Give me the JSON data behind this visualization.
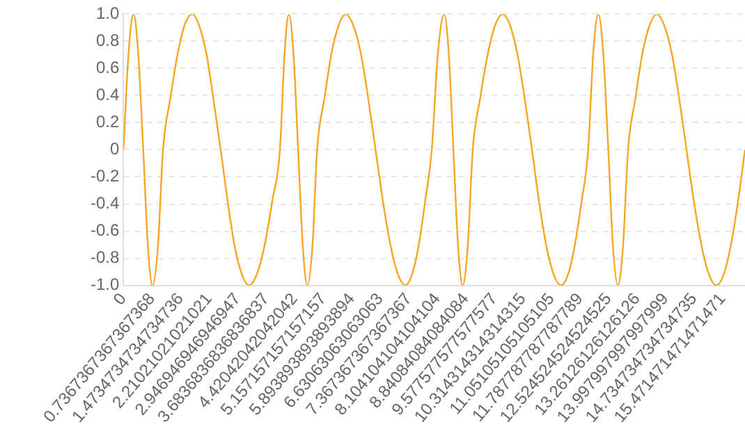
{
  "chart_data": {
    "type": "line",
    "x": [
      0,
      0.13,
      0.26,
      0.38,
      0.51,
      0.63,
      0.75,
      0.89,
      1.02,
      1.21,
      1.4,
      1.58,
      1.77,
      1.95,
      2.14,
      2.32,
      2.51,
      2.69,
      2.87,
      3.06,
      3.24,
      3.44,
      3.64,
      3.84,
      4.04,
      4.16,
      4.27,
      4.39,
      4.51,
      4.63,
      4.75,
      4.88,
      5.0,
      5.19,
      5.37,
      5.56,
      5.74,
      5.93,
      6.13,
      6.32,
      6.51,
      6.7,
      6.9,
      7.09,
      7.28,
      7.45,
      7.62,
      7.79,
      7.96,
      8.12,
      8.28,
      8.4,
      8.52,
      8.64,
      8.76,
      8.89,
      9.02,
      9.21,
      9.41,
      9.6,
      9.79,
      9.98,
      10.17,
      10.36,
      10.55,
      10.73,
      10.92,
      11.11,
      11.3,
      11.48,
      11.65,
      11.83,
      12.0,
      12.13,
      12.26,
      12.39,
      12.52,
      12.64,
      12.77,
      12.9,
      13.03,
      13.22,
      13.4,
      13.59,
      13.77,
      13.96,
      14.16,
      14.35,
      14.54,
      14.73,
      14.93,
      15.12,
      15.31,
      15.5,
      15.68,
      15.87,
      16.05
    ],
    "series": [
      {
        "color": "#f5a623",
        "values": [
          0,
          0.71,
          1,
          0.71,
          0,
          -0.71,
          -1,
          -0.71,
          0,
          0.38,
          0.71,
          0.92,
          1,
          0.92,
          0.71,
          0.38,
          0,
          -0.38,
          -0.71,
          -0.92,
          -1,
          -0.92,
          -0.71,
          -0.38,
          0,
          0.71,
          1,
          0.71,
          0,
          -0.71,
          -1,
          -0.71,
          0,
          0.38,
          0.71,
          0.92,
          1,
          0.92,
          0.71,
          0.38,
          0,
          -0.38,
          -0.71,
          -0.92,
          -1,
          -0.92,
          -0.71,
          -0.38,
          0,
          0.71,
          1,
          0.71,
          0,
          -0.71,
          -1,
          -0.71,
          0,
          0.38,
          0.71,
          0.92,
          1,
          0.92,
          0.71,
          0.38,
          0,
          -0.38,
          -0.71,
          -0.92,
          -1,
          -0.92,
          -0.71,
          -0.38,
          0,
          0.71,
          1,
          0.71,
          0,
          -0.71,
          -1,
          -0.71,
          0,
          0.38,
          0.71,
          0.92,
          1,
          0.92,
          0.71,
          0.38,
          0,
          -0.38,
          -0.71,
          -0.92,
          -1,
          -0.92,
          -0.71,
          -0.38,
          0
        ]
      }
    ],
    "xlim": [
      0,
      16.05
    ],
    "xticks": [
      0,
      {
        "value": 0.7367367367367368,
        "label": "0.7367367367367368"
      },
      {
        "value": 1.4734734734734736,
        "label": "1.4734734734734736"
      },
      {
        "value": 2.21021021021021,
        "label": "2.21021021021021"
      },
      {
        "value": 2.946946946946947,
        "label": "2.946946946946947"
      },
      {
        "value": 3.6836836836836837,
        "label": "3.6836836836836837"
      },
      {
        "value": 4.42042042042042,
        "label": "4.42042042042042"
      },
      {
        "value": 5.157157157157157,
        "label": "5.157157157157157"
      },
      {
        "value": 5.893893893893894,
        "label": "5.893893893893894"
      },
      {
        "value": 6.63063063063063,
        "label": "6.63063063063063"
      },
      {
        "value": 7.367367367367367,
        "label": "7.367367367367367"
      },
      {
        "value": 8.104104104104104,
        "label": "8.104104104104104"
      },
      {
        "value": 8.84084084084084,
        "label": "8.84084084084084"
      },
      {
        "value": 9.577577577577577,
        "label": "9.577577577577577"
      },
      {
        "value": 10.314314314314315,
        "label": "10.314314314314315"
      },
      {
        "value": 11.05105105105105,
        "label": "11.05105105105105"
      },
      {
        "value": 11.787787787787789,
        "label": "11.787787787787789"
      },
      {
        "value": 12.524524524524525,
        "label": "12.524524524524525"
      },
      {
        "value": 13.26126126126126,
        "label": "13.26126126126126"
      },
      {
        "value": 13.997997997997999,
        "label": "13.997997997997999"
      },
      {
        "value": 14.734734734734735,
        "label": "14.734734734734735"
      },
      {
        "value": 15.471471471471471,
        "label": "15.471471471471471"
      }
    ],
    "ylim": [
      -1,
      1
    ],
    "yticks": [
      {
        "value": -1,
        "label": "-1.0"
      },
      -0.8,
      -0.6,
      -0.4,
      -0.2,
      0,
      0.2,
      0.4,
      0.6,
      0.8,
      {
        "value": 1,
        "label": "1.0"
      }
    ],
    "grid": "y",
    "legend": false,
    "marker": "none",
    "line_style": "solid"
  }
}
